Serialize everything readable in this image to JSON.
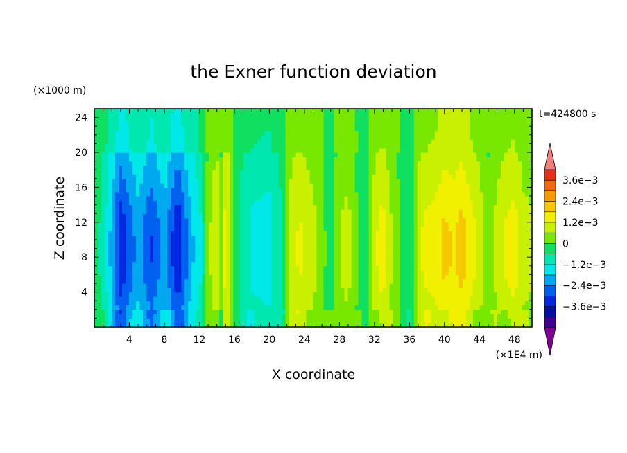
{
  "chart_data": {
    "type": "heatmap",
    "title": "the Exner function deviation",
    "xlabel": "X coordinate",
    "ylabel": "Z coordinate",
    "x_unit": "(×1E4 m)",
    "y_unit": "(×1000 m)",
    "time_label": "t=424800 s",
    "xlim": [
      0,
      50
    ],
    "ylim": [
      0,
      25
    ],
    "x_ticks": [
      4,
      8,
      12,
      16,
      20,
      24,
      28,
      32,
      36,
      40,
      44,
      48
    ],
    "y_ticks": [
      4,
      8,
      12,
      16,
      20,
      24
    ],
    "colorbar": {
      "levels": [
        "3.6e-3",
        "2.4e-3",
        "1.2e-3",
        "0",
        "-1.2e-3",
        "-2.4e-3",
        "-3.6e-3"
      ],
      "tick_labels": [
        "3.6e−3",
        "2.4e−3",
        "1.2e−3",
        "0",
        "−1.2e−3",
        "−2.4e−3",
        "−3.6e−3"
      ],
      "colors_top_to_bottom": [
        "#f08080",
        "#e83018",
        "#f26a10",
        "#f59c00",
        "#f5c800",
        "#f0f000",
        "#c8f000",
        "#78e800",
        "#10e060",
        "#00e8b0",
        "#00e8e8",
        "#00a8f0",
        "#0060f0",
        "#0028e0",
        "#0010a0",
        "#400090",
        "#800090"
      ],
      "extend": "both"
    },
    "vertical_profile": {
      "description_units": "value in units of 1e-3 at x (1E4 m)",
      "x": [
        0.5,
        1.5,
        3,
        5,
        6.5,
        8,
        9.5,
        11,
        12.2,
        13,
        14,
        14.5,
        15,
        16,
        18,
        20,
        21.5,
        22.5,
        23.5,
        25,
        26,
        27,
        28,
        29,
        30,
        31,
        32,
        33,
        34,
        35,
        36,
        37,
        38,
        39,
        40,
        41,
        42,
        43,
        44,
        45,
        46,
        47,
        48,
        49,
        50
      ],
      "value": [
        -0.2,
        -1.0,
        -2.8,
        -1.6,
        -2.4,
        -1.6,
        -2.9,
        -1.5,
        -0.8,
        0.6,
        1.4,
        0.4,
        1.8,
        0,
        -0.9,
        -1.0,
        -0.2,
        1.2,
        1.4,
        1.0,
        0.5,
        -0.1,
        0.8,
        1.0,
        0.3,
        -0.2,
        1.2,
        1.6,
        0.8,
        0.2,
        -0.3,
        1.2,
        1.5,
        1.6,
        2.0,
        1.8,
        2.1,
        1.6,
        1.2,
        0.4,
        1.0,
        1.4,
        1.6,
        1.0,
        0.9
      ]
    }
  }
}
